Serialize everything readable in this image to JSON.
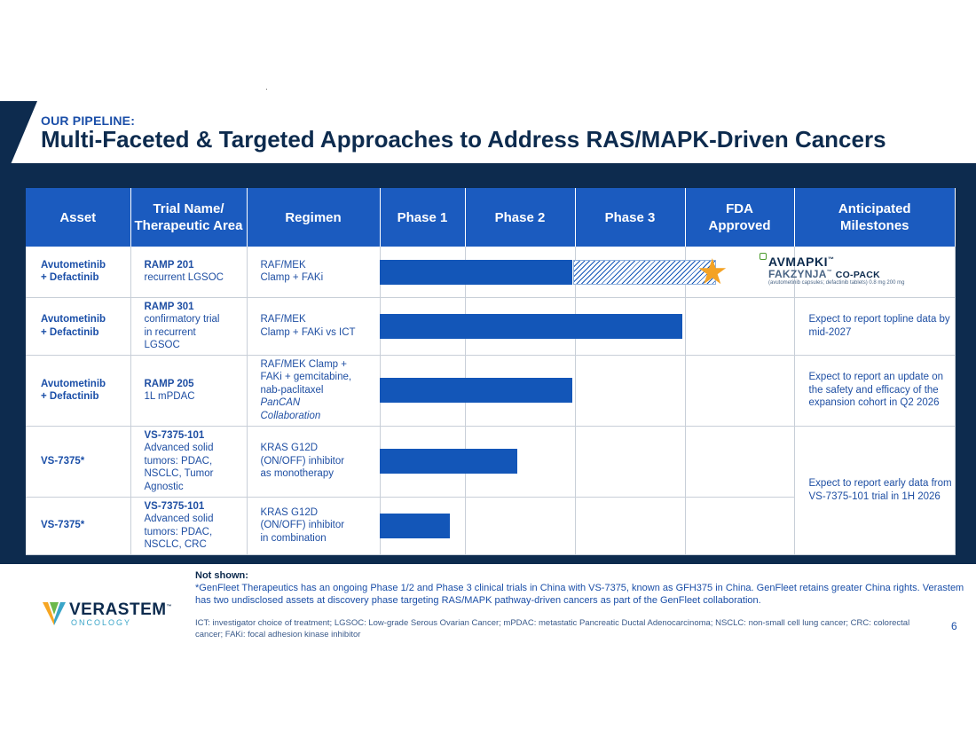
{
  "header": {
    "eyebrow": "OUR PIPELINE:",
    "title": "Multi-Faceted & Targeted Approaches to Address RAS/MAPK-Driven Cancers"
  },
  "table": {
    "columns": [
      "Asset",
      "Trial Name/\nTherapeutic Area",
      "Regimen",
      "Phase 1",
      "Phase 2",
      "Phase 3",
      "FDA\nApproved",
      "Anticipated\nMilestones"
    ],
    "rows": [
      {
        "asset": "Avutometinib\n+ Defactinib",
        "trial_name": "RAMP 201",
        "trial_area": "recurrent LGSOC",
        "regimen": "RAF/MEK\nClamp + FAKi",
        "regimen_italic": "",
        "progress_phase": 2,
        "extended_to": "FDA Approved",
        "milestone": ""
      },
      {
        "asset": "Avutometinib\n+ Defactinib",
        "trial_name": "RAMP 301",
        "trial_area": "confirmatory trial\nin recurrent\nLGSOC",
        "regimen": "RAF/MEK\nClamp + FAKi vs ICT",
        "regimen_italic": "",
        "progress_phase": 3,
        "milestone": "Expect to report topline data by mid-2027"
      },
      {
        "asset": "Avutometinib\n+ Defactinib",
        "trial_name": "RAMP 205",
        "trial_area": "1L mPDAC",
        "regimen": "RAF/MEK Clamp +\nFAKi + gemcitabine,\nnab-paclitaxel",
        "regimen_italic": "PanCAN\nCollaboration",
        "progress_phase": 2,
        "milestone": "Expect to report an update on the safety and efficacy of the expansion cohort in Q2 2026"
      },
      {
        "asset": "VS-7375*",
        "trial_name": "VS-7375-101",
        "trial_area": "Advanced solid\ntumors: PDAC,\nNSCLC, Tumor\nAgnostic",
        "regimen": "KRAS G12D\n(ON/OFF) inhibitor\nas monotherapy",
        "regimen_italic": "",
        "progress_phase": 1.5,
        "milestone": "Expect to report early data from VS-7375-101 trial in 1H 2026"
      },
      {
        "asset": "VS-7375*",
        "trial_name": "VS-7375-101",
        "trial_area": "Advanced solid\ntumors: PDAC,\nNSCLC, CRC",
        "regimen": "KRAS G12D\n(ON/OFF) inhibitor\nin combination",
        "regimen_italic": "",
        "progress_phase": 0.85,
        "milestone": ""
      }
    ]
  },
  "approved_logo": {
    "line1": "AVMAPKI",
    "tm": "™",
    "line2": "FAKZYNJA",
    "line2_suffix": "CO-PACK",
    "sub": "(avutometinib capsules; defactinib tablets) 0.8 mg 200 mg"
  },
  "footnotes": {
    "heading": "Not shown:",
    "text": "*GenFleet Therapeutics has an ongoing Phase 1/2 and Phase 3 clinical trials in China with VS-7375, known as GFH375 in China. GenFleet retains greater China rights. Verastem has two undisclosed assets at discovery phase targeting RAS/MAPK pathway-driven cancers as part of the GenFleet collaboration.",
    "abbreviations": "ICT: investigator choice of treatment; LGSOC: Low-grade Serous Ovarian Cancer; mPDAC: metastatic Pancreatic Ductal Adenocarcinoma; NSCLC: non-small cell lung cancer; CRC: colorectal cancer; FAKi: focal adhesion kinase inhibitor"
  },
  "brand": {
    "name": "VERASTEM",
    "tm": "™",
    "sub": "ONCOLOGY"
  },
  "page_number": "6",
  "colors": {
    "navy": "#0d2b4e",
    "header_blue": "#1b5bbf",
    "bar_blue": "#1356b8",
    "star": "#f4a224"
  }
}
